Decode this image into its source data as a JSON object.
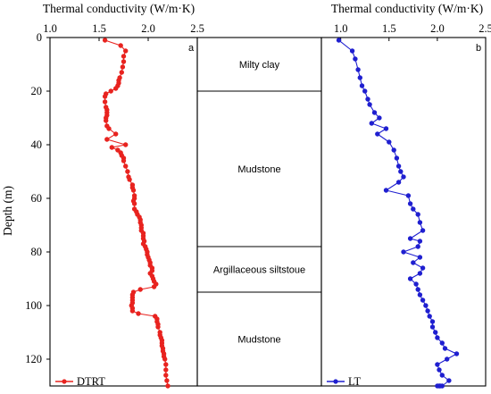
{
  "chart_data": [
    {
      "type": "line",
      "panel": "a",
      "xlabel": "Thermal conductivity (W/m·K)",
      "ylabel": "Depth (m)",
      "xlim": [
        1.0,
        2.5
      ],
      "ylim": [
        0,
        130
      ],
      "y_inverted": true,
      "xticks": [
        "1.0",
        "1.5",
        "2.0",
        "2.5"
      ],
      "yticks": [
        "0",
        "20",
        "40",
        "60",
        "80",
        "100",
        "120"
      ],
      "color": "#e8231f",
      "series": [
        {
          "name": "DTRT",
          "x": [
            1.56,
            1.72,
            1.77,
            1.75,
            1.75,
            1.74,
            1.73,
            1.71,
            1.7,
            1.7,
            1.69,
            1.67,
            1.62,
            1.57,
            1.56,
            1.56,
            1.57,
            1.58,
            1.58,
            1.58,
            1.57,
            1.57,
            1.58,
            1.6,
            1.67,
            1.58,
            1.77,
            1.63,
            1.69,
            1.72,
            1.73,
            1.75,
            1.75,
            1.77,
            1.79,
            1.8,
            1.81,
            1.84,
            1.84,
            1.85,
            1.86,
            1.86,
            1.85,
            1.86,
            1.86,
            1.88,
            1.89,
            1.91,
            1.92,
            1.92,
            1.93,
            1.93,
            1.93,
            1.95,
            1.95,
            1.95,
            1.96,
            1.95,
            1.97,
            1.98,
            1.99,
            1.99,
            2.0,
            2.01,
            2.02,
            2.02,
            2.04,
            2.04,
            2.02,
            2.04,
            2.05,
            2.06,
            2.08,
            2.06,
            1.92,
            1.85,
            1.84,
            1.84,
            1.84,
            1.84,
            1.83,
            1.84,
            1.84,
            1.9,
            2.07,
            2.09,
            2.09,
            2.1,
            2.1,
            2.12,
            2.12,
            2.13,
            2.14,
            2.14,
            2.14,
            2.15,
            2.15,
            2.16,
            2.16,
            2.17,
            2.18,
            2.18,
            2.18,
            2.19,
            2.2
          ],
          "y": [
            1,
            3,
            5,
            7,
            9,
            11,
            13,
            15,
            16,
            17,
            18,
            19,
            20,
            21,
            22,
            24,
            26,
            27,
            28,
            29,
            30,
            31,
            33,
            34,
            36,
            38,
            40,
            41,
            42,
            43,
            44,
            45,
            46,
            48,
            50,
            52,
            53,
            55,
            56,
            57,
            59,
            60,
            61,
            62,
            64,
            65,
            66,
            67,
            68,
            69,
            70,
            71,
            72,
            73,
            74,
            75,
            76,
            77,
            78,
            79,
            80,
            81,
            82,
            83,
            84,
            85,
            86,
            87,
            88,
            89,
            90,
            91,
            92,
            93,
            94,
            95,
            96,
            97,
            98,
            99,
            100,
            101,
            102,
            103,
            104,
            105,
            106,
            107,
            108,
            110,
            111,
            112,
            113,
            114,
            115,
            116,
            117,
            118,
            119,
            120,
            122,
            124,
            126,
            128,
            130
          ]
        }
      ]
    },
    {
      "type": "line",
      "panel": "b",
      "xlabel": "Thermal conductivity (W/m·K)",
      "xlim": [
        0.8,
        2.5
      ],
      "ylim": [
        0,
        130
      ],
      "y_inverted": true,
      "xticks": [
        "1.0",
        "1.5",
        "2.0",
        "2.5"
      ],
      "color": "#1f1fd0",
      "series": [
        {
          "name": "LT",
          "x": [
            0.98,
            1.12,
            1.15,
            1.18,
            1.2,
            1.22,
            1.25,
            1.28,
            1.3,
            1.35,
            1.4,
            1.32,
            1.47,
            1.38,
            1.5,
            1.55,
            1.58,
            1.6,
            1.62,
            1.65,
            1.6,
            1.47,
            1.7,
            1.72,
            1.75,
            1.8,
            1.82,
            1.85,
            1.72,
            1.82,
            1.8,
            1.65,
            1.82,
            1.75,
            1.85,
            1.82,
            1.72,
            1.78,
            1.8,
            1.82,
            1.85,
            1.88,
            1.9,
            1.92,
            1.95,
            1.95,
            1.98,
            2.0,
            2.05,
            2.08,
            2.2,
            2.1,
            2.0,
            2.02,
            2.05,
            2.12,
            2.05,
            2.02,
            2.0,
            2.03
          ],
          "y": [
            1,
            5,
            8,
            12,
            15,
            18,
            20,
            23,
            25,
            28,
            30,
            32,
            34,
            36,
            39,
            42,
            45,
            48,
            50,
            52,
            54,
            57,
            59,
            62,
            64,
            66,
            69,
            72,
            75,
            76,
            78,
            80,
            82,
            84,
            86,
            88,
            90,
            92,
            94,
            96,
            98,
            100,
            102,
            104,
            106,
            108,
            110,
            112,
            114,
            116,
            118,
            120,
            122,
            124,
            126,
            128,
            130,
            130,
            130,
            130
          ]
        }
      ]
    },
    {
      "type": "table",
      "panel": "lithology",
      "layers": [
        {
          "name": "Milty clay",
          "top": 0,
          "bottom": 20
        },
        {
          "name": "Mudstone",
          "top": 20,
          "bottom": 78
        },
        {
          "name": "Argillaceous siltstoue",
          "top": 78,
          "bottom": 95
        },
        {
          "name": "Mudstone",
          "top": 95,
          "bottom": 130
        }
      ]
    }
  ],
  "figure": {
    "panel_letter_a": "a",
    "panel_letter_b": "b",
    "legend_a": "DTRT",
    "legend_b": "LT",
    "xlabel_a": "Thermal conductivity (W/m·K)",
    "xlabel_b": "Thermal conductivity (W/m·K)",
    "ylabel": "Depth (m)"
  }
}
